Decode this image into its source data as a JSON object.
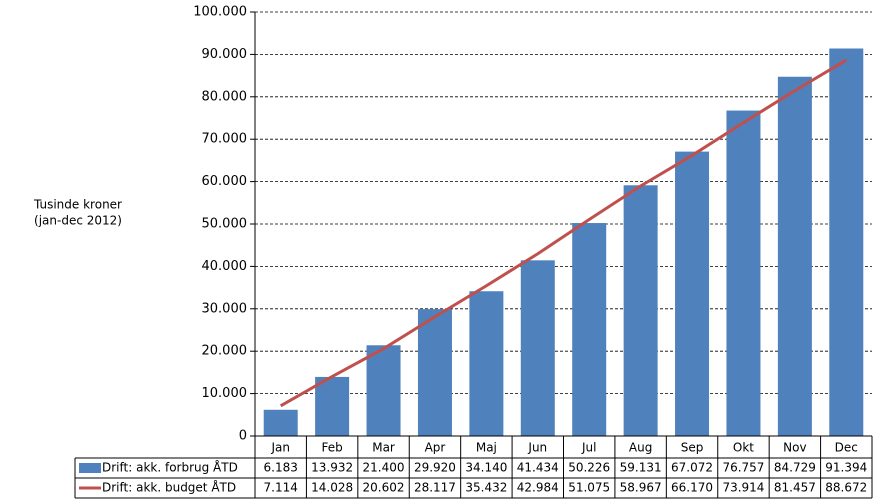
{
  "chart_data": {
    "type": "bar",
    "ylabel": [
      "Tusinde kroner",
      "(jan-dec 2012)"
    ],
    "categories": [
      "Jan",
      "Feb",
      "Mar",
      "Apr",
      "Maj",
      "Jun",
      "Jul",
      "Aug",
      "Sep",
      "Okt",
      "Nov",
      "Dec"
    ],
    "series": [
      {
        "name": "Drift: akk. forbrug ÅTD",
        "type": "bar",
        "color": "#4f81bd",
        "values": [
          6183,
          13932,
          21400,
          29920,
          34140,
          41434,
          50226,
          59131,
          67072,
          76757,
          84729,
          91394
        ],
        "value_labels": [
          "6.183",
          "13.932",
          "21.400",
          "29.920",
          "34.140",
          "41.434",
          "50.226",
          "59.131",
          "67.072",
          "76.757",
          "84.729",
          "91.394"
        ]
      },
      {
        "name": "Drift: akk. budget ÅTD",
        "type": "line",
        "color": "#c0504d",
        "values": [
          7114,
          14028,
          20602,
          28117,
          35432,
          42984,
          51075,
          58967,
          66170,
          73914,
          81457,
          88672
        ],
        "value_labels": [
          "7.114",
          "14.028",
          "20.602",
          "28.117",
          "35.432",
          "42.984",
          "51.075",
          "58.967",
          "66.170",
          "73.914",
          "81.457",
          "88.672"
        ]
      }
    ],
    "ylim": [
      0,
      100000
    ],
    "yticks": [
      0,
      {
        "value": 10000,
        "label": "10.000"
      },
      {
        "value": 20000,
        "label": "20.000"
      },
      {
        "value": 30000,
        "label": "30.000"
      },
      {
        "value": 40000,
        "label": "40.000"
      },
      {
        "value": 50000,
        "label": "50.000"
      },
      {
        "value": 60000,
        "label": "60.000"
      },
      {
        "value": 70000,
        "label": "70.000"
      },
      {
        "value": 80000,
        "label": "80.000"
      },
      {
        "value": 90000,
        "label": "90.000"
      },
      {
        "value": 100000,
        "label": "100.000"
      }
    ],
    "grid": true
  }
}
